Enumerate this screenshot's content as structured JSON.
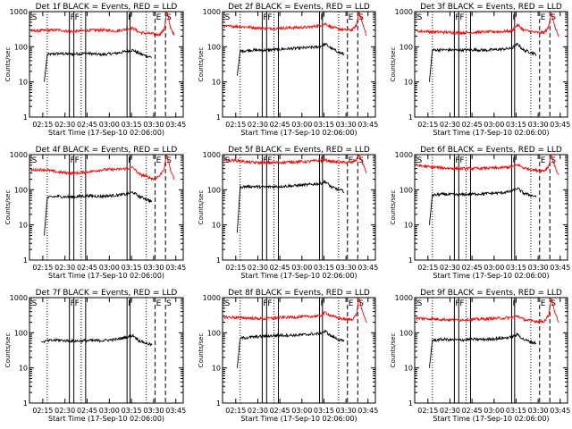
{
  "figure": {
    "xlabel": "Start Time (17-Sep-10 02:06:00)",
    "ylabel": "Counts/sec",
    "x_tick_labels": [
      "02:15",
      "02:30",
      "02:45",
      "03:00",
      "03:15",
      "03:30",
      "03:45"
    ],
    "y_tick_labels": [
      "1",
      "10",
      "100",
      "1000"
    ],
    "colors": {
      "events": "#000000",
      "lld": "#ff0000",
      "axes": "#000000",
      "background": "#ffffff"
    }
  },
  "chart_data": [
    {
      "type": "line",
      "title": "Det 1f BLACK = Events, RED = LLD",
      "xlabel": "Start Time (17-Sep-10 02:06:00)",
      "ylabel": "Counts/sec",
      "xlim": [
        "02:06",
        "03:50"
      ],
      "ylim": [
        1,
        1000
      ],
      "y_scale": "log",
      "series": [
        {
          "x": [
            "02:16",
            "02:18",
            "02:25",
            "02:35",
            "02:45",
            "02:55",
            "03:05",
            "03:12",
            "03:16",
            "03:20",
            "03:25",
            "03:29"
          ],
          "values": [
            10,
            60,
            64,
            62,
            65,
            60,
            66,
            75,
            80,
            65,
            55,
            50
          ]
        },
        {
          "x": [
            "02:07",
            "02:15",
            "02:25",
            "02:35",
            "02:45",
            "02:55",
            "03:05",
            "03:12",
            "03:16",
            "03:20",
            "03:25",
            "03:30",
            "03:34",
            "03:37",
            "03:39",
            "03:41",
            "03:44"
          ],
          "values": [
            280,
            290,
            300,
            270,
            290,
            300,
            280,
            320,
            340,
            260,
            240,
            230,
            220,
            300,
            1000,
            400,
            200
          ]
        }
      ],
      "markers": [
        {
          "label": "S",
          "x": "02:07"
        },
        {
          "label": "F",
          "x": "02:33"
        },
        {
          "label": "F",
          "x": "02:36"
        },
        {
          "label": "F",
          "x": "03:12"
        },
        {
          "label": "E",
          "x": "03:31"
        },
        {
          "label": "S",
          "x": "03:38"
        }
      ]
    },
    {
      "type": "line",
      "title": "Det 2f BLACK = Events, RED = LLD",
      "xlabel": "Start Time (17-Sep-10 02:06:00)",
      "ylabel": "Counts/sec",
      "xlim": [
        "02:06",
        "03:50"
      ],
      "ylim": [
        1,
        1000
      ],
      "y_scale": "log",
      "series": [
        {
          "x": [
            "02:16",
            "02:18",
            "02:25",
            "02:35",
            "02:45",
            "02:55",
            "03:05",
            "03:12",
            "03:16",
            "03:20",
            "03:25",
            "03:29"
          ],
          "values": [
            15,
            75,
            80,
            80,
            85,
            90,
            95,
            100,
            120,
            90,
            70,
            60
          ]
        },
        {
          "x": [
            "02:07",
            "02:15",
            "02:25",
            "02:35",
            "02:45",
            "02:55",
            "03:05",
            "03:12",
            "03:16",
            "03:20",
            "03:25",
            "03:30",
            "03:34",
            "03:37",
            "03:39",
            "03:41",
            "03:44"
          ],
          "values": [
            380,
            380,
            360,
            330,
            340,
            350,
            360,
            400,
            450,
            360,
            320,
            300,
            300,
            400,
            1000,
            500,
            200
          ]
        }
      ],
      "markers": [
        {
          "label": "S",
          "x": "02:07"
        },
        {
          "label": "F",
          "x": "02:33"
        },
        {
          "label": "F",
          "x": "02:36"
        },
        {
          "label": "F",
          "x": "03:12"
        },
        {
          "label": "E",
          "x": "03:31"
        },
        {
          "label": "S",
          "x": "03:38"
        }
      ]
    },
    {
      "type": "line",
      "title": "Det 3f BLACK = Events, RED = LLD",
      "xlabel": "Start Time (17-Sep-10 02:06:00)",
      "ylabel": "Counts/sec",
      "xlim": [
        "02:06",
        "03:50"
      ],
      "ylim": [
        1,
        1000
      ],
      "y_scale": "log",
      "series": [
        {
          "x": [
            "02:16",
            "02:18",
            "02:25",
            "02:35",
            "02:45",
            "02:55",
            "03:05",
            "03:12",
            "03:16",
            "03:20",
            "03:25",
            "03:29"
          ],
          "values": [
            10,
            80,
            82,
            80,
            82,
            80,
            85,
            90,
            120,
            80,
            70,
            60
          ]
        },
        {
          "x": [
            "02:07",
            "02:15",
            "02:25",
            "02:35",
            "02:45",
            "02:55",
            "03:05",
            "03:12",
            "03:16",
            "03:20",
            "03:25",
            "03:30",
            "03:34",
            "03:37",
            "03:39",
            "03:41",
            "03:44"
          ],
          "values": [
            280,
            270,
            260,
            250,
            255,
            265,
            270,
            280,
            420,
            300,
            270,
            250,
            250,
            350,
            1000,
            400,
            200
          ]
        }
      ],
      "markers": [
        {
          "label": "S",
          "x": "02:07"
        },
        {
          "label": "F",
          "x": "02:33"
        },
        {
          "label": "F",
          "x": "02:36"
        },
        {
          "label": "F",
          "x": "03:12"
        },
        {
          "label": "E",
          "x": "03:31"
        },
        {
          "label": "S",
          "x": "03:38"
        }
      ]
    },
    {
      "type": "line",
      "title": "Det 4f BLACK = Events, RED = LLD",
      "xlabel": "Start Time (17-Sep-10 02:06:00)",
      "ylabel": "Counts/sec",
      "xlim": [
        "02:06",
        "03:50"
      ],
      "ylim": [
        1,
        1000
      ],
      "y_scale": "log",
      "series": [
        {
          "x": [
            "02:16",
            "02:18",
            "02:25",
            "02:35",
            "02:45",
            "02:55",
            "03:05",
            "03:12",
            "03:16",
            "03:20",
            "03:25",
            "03:29"
          ],
          "values": [
            5,
            60,
            65,
            62,
            68,
            65,
            70,
            75,
            85,
            65,
            55,
            45
          ]
        },
        {
          "x": [
            "02:07",
            "02:15",
            "02:25",
            "02:35",
            "02:45",
            "02:55",
            "03:05",
            "03:12",
            "03:16",
            "03:20",
            "03:25",
            "03:30",
            "03:34",
            "03:37",
            "03:39",
            "03:41",
            "03:44"
          ],
          "values": [
            360,
            380,
            320,
            290,
            320,
            370,
            380,
            400,
            430,
            280,
            240,
            200,
            250,
            400,
            1000,
            400,
            200
          ]
        }
      ],
      "markers": [
        {
          "label": "S",
          "x": "02:07"
        },
        {
          "label": "F",
          "x": "02:33"
        },
        {
          "label": "F",
          "x": "02:36"
        },
        {
          "label": "F",
          "x": "03:12"
        },
        {
          "label": "E",
          "x": "03:31"
        },
        {
          "label": "S",
          "x": "03:38"
        }
      ]
    },
    {
      "type": "line",
      "title": "Det 5f BLACK = Events, RED = LLD",
      "xlabel": "Start Time (17-Sep-10 02:06:00)",
      "ylabel": "Counts/sec",
      "xlim": [
        "02:06",
        "03:50"
      ],
      "ylim": [
        1,
        1000
      ],
      "y_scale": "log",
      "series": [
        {
          "x": [
            "02:16",
            "02:18",
            "02:25",
            "02:35",
            "02:45",
            "02:55",
            "03:05",
            "03:12",
            "03:16",
            "03:20",
            "03:25",
            "03:29"
          ],
          "values": [
            6,
            120,
            125,
            120,
            125,
            130,
            140,
            150,
            170,
            120,
            100,
            90
          ]
        },
        {
          "x": [
            "02:07",
            "02:15",
            "02:25",
            "02:35",
            "02:45",
            "02:55",
            "03:05",
            "03:12",
            "03:16",
            "03:20",
            "03:25",
            "03:30",
            "03:34",
            "03:37",
            "03:39",
            "03:41",
            "03:44"
          ],
          "values": [
            700,
            680,
            600,
            580,
            600,
            620,
            640,
            680,
            700,
            640,
            600,
            600,
            600,
            700,
            1000,
            600,
            300
          ]
        }
      ],
      "markers": [
        {
          "label": "S",
          "x": "02:07"
        },
        {
          "label": "F",
          "x": "02:33"
        },
        {
          "label": "F",
          "x": "02:36"
        },
        {
          "label": "F",
          "x": "03:12"
        },
        {
          "label": "E",
          "x": "03:31"
        },
        {
          "label": "S",
          "x": "03:38"
        }
      ]
    },
    {
      "type": "line",
      "title": "Det 6f BLACK = Events, RED = LLD",
      "xlabel": "Start Time (17-Sep-10 02:06:00)",
      "ylabel": "Counts/sec",
      "xlim": [
        "02:06",
        "03:50"
      ],
      "ylim": [
        1,
        1000
      ],
      "y_scale": "log",
      "series": [
        {
          "x": [
            "02:16",
            "02:18",
            "02:25",
            "02:35",
            "02:45",
            "02:55",
            "03:05",
            "03:12",
            "03:16",
            "03:20",
            "03:25",
            "03:29"
          ],
          "values": [
            10,
            70,
            75,
            72,
            75,
            78,
            82,
            90,
            110,
            80,
            70,
            65
          ]
        },
        {
          "x": [
            "02:07",
            "02:15",
            "02:25",
            "02:35",
            "02:45",
            "02:55",
            "03:05",
            "03:12",
            "03:16",
            "03:20",
            "03:25",
            "03:30",
            "03:34",
            "03:37",
            "03:39",
            "03:41",
            "03:44"
          ],
          "values": [
            500,
            450,
            420,
            400,
            400,
            410,
            420,
            450,
            520,
            420,
            380,
            350,
            350,
            450,
            1000,
            500,
            250
          ]
        }
      ],
      "markers": [
        {
          "label": "S",
          "x": "02:07"
        },
        {
          "label": "F",
          "x": "02:33"
        },
        {
          "label": "F",
          "x": "02:36"
        },
        {
          "label": "F",
          "x": "03:12"
        },
        {
          "label": "E",
          "x": "03:31"
        },
        {
          "label": "S",
          "x": "03:38"
        }
      ]
    },
    {
      "type": "line",
      "title": "Det 7f BLACK = Events, RED = LLD",
      "xlabel": "Start Time (17-Sep-10 02:06:00)",
      "ylabel": "Counts/sec",
      "xlim": [
        "02:06",
        "03:50"
      ],
      "ylim": [
        1,
        1000
      ],
      "y_scale": "log",
      "series": [
        {
          "x": [
            "02:14",
            "02:20",
            "02:25",
            "02:35",
            "02:45",
            "02:55",
            "03:05",
            "03:12",
            "03:16",
            "03:20",
            "03:25",
            "03:29"
          ],
          "values": [
            55,
            60,
            62,
            58,
            60,
            60,
            65,
            75,
            85,
            60,
            50,
            45
          ]
        }
      ],
      "markers": [
        {
          "label": "S",
          "x": "02:07"
        },
        {
          "label": "F",
          "x": "02:33"
        },
        {
          "label": "F",
          "x": "02:36"
        },
        {
          "label": "F",
          "x": "03:12"
        },
        {
          "label": "E",
          "x": "03:31"
        },
        {
          "label": "S",
          "x": "03:38"
        }
      ]
    },
    {
      "type": "line",
      "title": "Det 8f BLACK = Events, RED = LLD",
      "xlabel": "Start Time (17-Sep-10 02:06:00)",
      "ylabel": "Counts/sec",
      "xlim": [
        "02:06",
        "03:50"
      ],
      "ylim": [
        1,
        1000
      ],
      "y_scale": "log",
      "series": [
        {
          "x": [
            "02:16",
            "02:18",
            "02:25",
            "02:35",
            "02:45",
            "02:55",
            "03:05",
            "03:12",
            "03:16",
            "03:20",
            "03:25",
            "03:29"
          ],
          "values": [
            10,
            70,
            75,
            80,
            85,
            85,
            90,
            95,
            110,
            80,
            65,
            55
          ]
        },
        {
          "x": [
            "02:07",
            "02:15",
            "02:25",
            "02:35",
            "02:45",
            "02:55",
            "03:05",
            "03:12",
            "03:16",
            "03:20",
            "03:25",
            "03:30",
            "03:34",
            "03:37",
            "03:39",
            "03:41",
            "03:44"
          ],
          "values": [
            280,
            270,
            260,
            250,
            270,
            280,
            290,
            300,
            380,
            300,
            260,
            240,
            240,
            320,
            1000,
            400,
            200
          ]
        }
      ],
      "markers": [
        {
          "label": "S",
          "x": "02:07"
        },
        {
          "label": "F",
          "x": "02:33"
        },
        {
          "label": "F",
          "x": "02:36"
        },
        {
          "label": "F",
          "x": "03:12"
        },
        {
          "label": "E",
          "x": "03:31"
        },
        {
          "label": "S",
          "x": "03:38"
        }
      ]
    },
    {
      "type": "line",
      "title": "Det 9f BLACK = Events, RED = LLD",
      "xlabel": "Start Time (17-Sep-10 02:06:00)",
      "ylabel": "Counts/sec",
      "xlim": [
        "02:06",
        "03:50"
      ],
      "ylim": [
        1,
        1000
      ],
      "y_scale": "log",
      "series": [
        {
          "x": [
            "02:16",
            "02:18",
            "02:25",
            "02:35",
            "02:45",
            "02:55",
            "03:05",
            "03:12",
            "03:16",
            "03:20",
            "03:25",
            "03:29"
          ],
          "values": [
            10,
            60,
            65,
            62,
            65,
            65,
            70,
            75,
            90,
            65,
            55,
            50
          ]
        },
        {
          "x": [
            "02:07",
            "02:15",
            "02:25",
            "02:35",
            "02:45",
            "02:55",
            "03:05",
            "03:12",
            "03:16",
            "03:20",
            "03:25",
            "03:30",
            "03:34",
            "03:37",
            "03:39",
            "03:41",
            "03:44"
          ],
          "values": [
            260,
            250,
            240,
            230,
            240,
            250,
            260,
            270,
            300,
            240,
            220,
            210,
            210,
            300,
            1000,
            400,
            200
          ]
        }
      ],
      "markers": [
        {
          "label": "S",
          "x": "02:07"
        },
        {
          "label": "F",
          "x": "02:33"
        },
        {
          "label": "F",
          "x": "02:36"
        },
        {
          "label": "F",
          "x": "03:12"
        },
        {
          "label": "E",
          "x": "03:31"
        },
        {
          "label": "S",
          "x": "03:38"
        }
      ]
    }
  ]
}
